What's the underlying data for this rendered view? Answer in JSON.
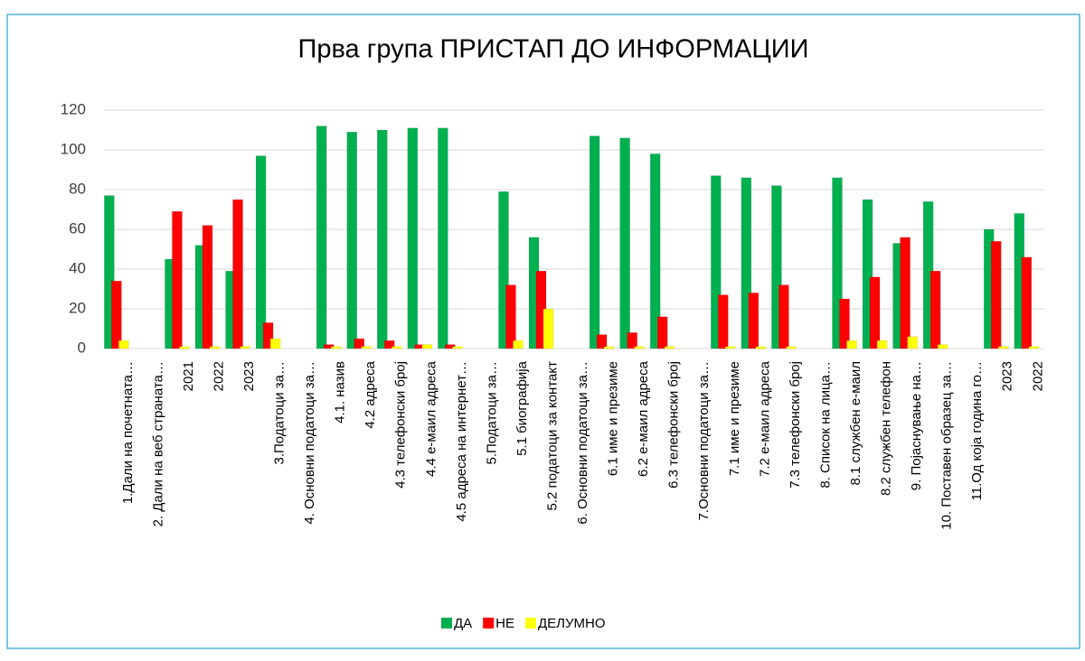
{
  "chart_data": {
    "type": "bar",
    "title": "Прва група  ПРИСТАП ДО ИНФОРМАЦИИ",
    "categories": [
      "1.Дали на почетната…",
      "2. Дали на веб страната…",
      "2021",
      "2022",
      "2023",
      "3.Податоци за…",
      "4. Основни податоци за…",
      "4.1. назив",
      "4.2  адреса",
      "4.3  телефонски број",
      "4.4  е-маил адреса",
      "4.5 адреса на интернет…",
      "5.Податоци за…",
      "5.1 биографија",
      "5.2 податоци за контакт",
      "6. Основни податоци за…",
      "6.1 име и презиме",
      "6.2 е-маил адреса",
      "6.3 телефонски број",
      "7.Основни податоци за…",
      "7.1  име и презиме",
      "7.2  е-маил адреса",
      "7.3  телефонски број",
      "8. Список на лица…",
      "8.1  службен е-маил",
      "8.2  службен телефон",
      "9. Појаснување на…",
      "10. Поставен образец за…",
      "11.Од која година го…",
      "2023",
      "2022"
    ],
    "series": [
      {
        "name": "ДА",
        "color": "#00b050",
        "values": [
          77,
          null,
          45,
          52,
          39,
          97,
          null,
          112,
          109,
          110,
          111,
          111,
          null,
          79,
          56,
          null,
          107,
          106,
          98,
          null,
          87,
          86,
          82,
          null,
          86,
          75,
          53,
          74,
          null,
          60,
          68
        ]
      },
      {
        "name": "НЕ",
        "color": "#ff0000",
        "values": [
          34,
          null,
          69,
          62,
          75,
          13,
          null,
          2,
          5,
          4,
          2,
          2,
          null,
          32,
          39,
          null,
          7,
          8,
          16,
          null,
          27,
          28,
          32,
          null,
          25,
          36,
          56,
          39,
          null,
          54,
          46
        ]
      },
      {
        "name": "ДЕЛУМНО",
        "color": "#ffff00",
        "values": [
          4,
          null,
          1,
          1,
          1,
          5,
          null,
          1,
          1,
          1,
          2,
          1,
          null,
          4,
          20,
          null,
          1,
          1,
          1,
          null,
          1,
          1,
          1,
          null,
          4,
          4,
          6,
          2,
          null,
          1,
          1
        ]
      }
    ],
    "ylim": [
      0,
      120
    ],
    "yticks": [
      0,
      20,
      40,
      60,
      80,
      100,
      120
    ],
    "grid": true,
    "legend": "bottom"
  }
}
